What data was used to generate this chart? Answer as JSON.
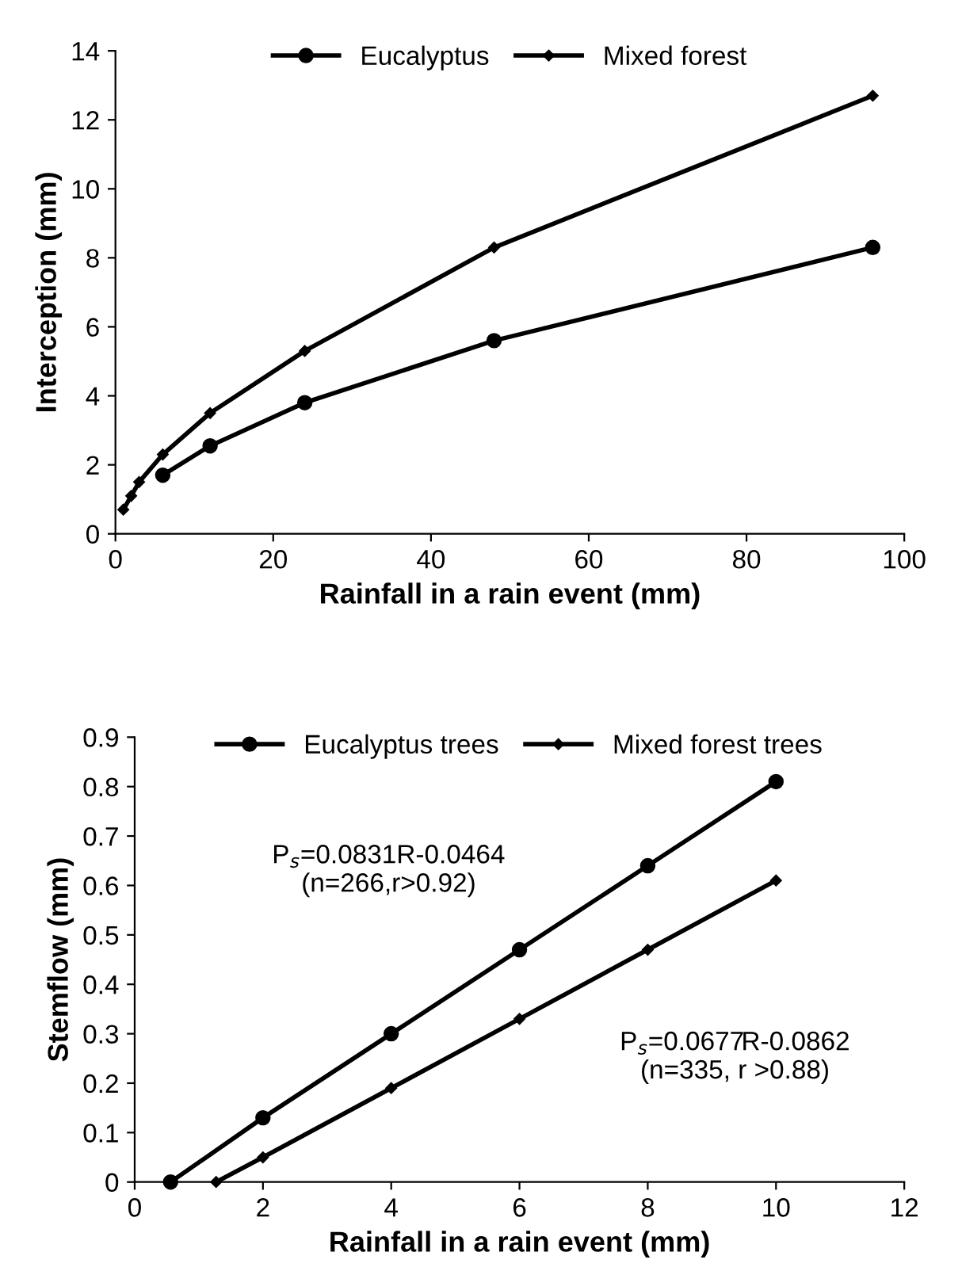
{
  "chart_data": [
    {
      "type": "line",
      "xlabel": "Rainfall in a rain event (mm)",
      "ylabel": "Interception (mm)",
      "xlim": [
        0,
        100
      ],
      "ylim": [
        0,
        14
      ],
      "xticks": [
        0,
        20,
        40,
        60,
        80,
        100
      ],
      "yticks": [
        0,
        2,
        4,
        6,
        8,
        10,
        12,
        14
      ],
      "grid": false,
      "legend": "top",
      "line_style": "solid",
      "series": [
        {
          "name": "Eucalyptus",
          "color": "#000000",
          "marker": "circle",
          "x": [
            6,
            12,
            24,
            48,
            96
          ],
          "values": [
            1.7,
            2.55,
            3.8,
            5.6,
            8.3
          ]
        },
        {
          "name": "Mixed forest",
          "color": "#000000",
          "marker": "diamond",
          "x": [
            1,
            2,
            3,
            6,
            12,
            24,
            48,
            96
          ],
          "values": [
            0.7,
            1.1,
            1.5,
            2.3,
            3.5,
            5.3,
            8.3,
            12.7
          ]
        }
      ]
    },
    {
      "type": "line",
      "xlabel": "Rainfall in a rain event (mm)",
      "ylabel": "Stemflow (mm)",
      "xlim": [
        0,
        12
      ],
      "ylim": [
        0,
        0.9
      ],
      "xticks": [
        0,
        2,
        4,
        6,
        8,
        10,
        12
      ],
      "yticks": [
        0,
        0.1,
        0.2,
        0.3,
        0.4,
        0.5,
        0.6,
        0.7,
        0.8,
        0.9
      ],
      "grid": false,
      "legend": "top",
      "line_style": "solid",
      "annotations": [
        "P$_{s}$=0.0831R-0.0464\n(n=266,r>0.92)",
        "P$_{s}$=0.0677R-0.0862\n(n=335, r >0.88)"
      ],
      "series": [
        {
          "name": "Eucalyptus trees",
          "color": "#000000",
          "marker": "circle",
          "x": [
            0.56,
            2,
            4,
            6,
            8,
            10
          ],
          "values": [
            0,
            0.13,
            0.3,
            0.47,
            0.64,
            0.81
          ]
        },
        {
          "name": "Mixed forest trees",
          "color": "#000000",
          "marker": "diamond",
          "x": [
            1.27,
            2,
            4,
            6,
            8,
            10
          ],
          "values": [
            0,
            0.05,
            0.19,
            0.33,
            0.47,
            0.61
          ]
        }
      ]
    }
  ]
}
